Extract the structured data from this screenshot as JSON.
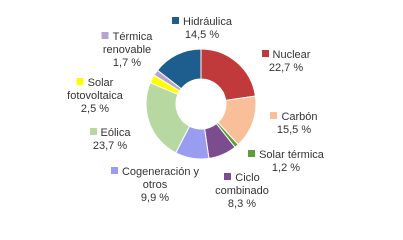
{
  "chart_data": {
    "type": "donut",
    "categories": [
      "Nuclear",
      "Carbón",
      "Solar térmica",
      "Ciclo combinado",
      "Cogeneración y otros",
      "Eólica",
      "Solar fotovoltaica",
      "Térmica renovable",
      "Hidráulica"
    ],
    "values": [
      22.7,
      15.5,
      1.2,
      8.3,
      9.9,
      23.7,
      2.5,
      1.7,
      14.5
    ],
    "value_labels": [
      "22,7 %",
      "15,5 %",
      "1,2 %",
      "8,3 %",
      "9,9 %",
      "23,7 %",
      "2,5 %",
      "1,7 %",
      "14,5 %"
    ],
    "colors": [
      "#c0393b",
      "#f9bf98",
      "#5c9e3a",
      "#7b4c8e",
      "#9a9cf0",
      "#b7d8a0",
      "#ffff00",
      "#b6a4d0",
      "#1d5e8e"
    ]
  }
}
